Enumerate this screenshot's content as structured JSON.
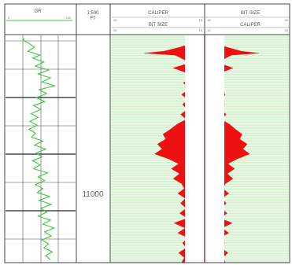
{
  "chart_data": {
    "type": "well-log",
    "colors": {
      "gr_curve": "#3cc83c",
      "track_fill": "#e6f7e2",
      "track_lines": "#bfe8b8",
      "caliper_fill": "#ee1111",
      "grid": "#333333",
      "header_text": "#555555"
    },
    "gr_track": {
      "label": "GR",
      "scale_left": "0",
      "scale_right": "150"
    },
    "depth_track": {
      "scale_line1": "1:500",
      "scale_line2": "FT",
      "depth_labels": [
        {
          "text": "11000",
          "depth": 11000
        }
      ]
    },
    "caliper_left_track": {
      "curve1_label": "CALIPER",
      "curve2_label": "BIT SIZE",
      "scale_left": "26",
      "scale_right": "16"
    },
    "caliper_right_track": {
      "curve1_label": "BIT SIZE",
      "curve2_label": "CALIPER",
      "scale_left": "16",
      "scale_right": "26"
    },
    "depth_range": [
      10840,
      11070
    ],
    "gr_range": [
      0,
      150
    ],
    "gr_values": [
      {
        "depth": 10843,
        "value": 40
      },
      {
        "depth": 10845,
        "value": 38
      },
      {
        "depth": 10848,
        "value": 50
      },
      {
        "depth": 10852,
        "value": 62
      },
      {
        "depth": 10856,
        "value": 48
      },
      {
        "depth": 10860,
        "value": 74
      },
      {
        "depth": 10863,
        "value": 58
      },
      {
        "depth": 10867,
        "value": 82
      },
      {
        "depth": 10871,
        "value": 64
      },
      {
        "depth": 10875,
        "value": 92
      },
      {
        "depth": 10879,
        "value": 70
      },
      {
        "depth": 10883,
        "value": 96
      },
      {
        "depth": 10887,
        "value": 78
      },
      {
        "depth": 10891,
        "value": 105
      },
      {
        "depth": 10895,
        "value": 72
      },
      {
        "depth": 10899,
        "value": 88
      },
      {
        "depth": 10903,
        "value": 66
      },
      {
        "depth": 10907,
        "value": 84
      },
      {
        "depth": 10911,
        "value": 60
      },
      {
        "depth": 10915,
        "value": 76
      },
      {
        "depth": 10919,
        "value": 55
      },
      {
        "depth": 10923,
        "value": 70
      },
      {
        "depth": 10927,
        "value": 52
      },
      {
        "depth": 10931,
        "value": 68
      },
      {
        "depth": 10935,
        "value": 50
      },
      {
        "depth": 10939,
        "value": 64
      },
      {
        "depth": 10943,
        "value": 56
      },
      {
        "depth": 10947,
        "value": 80
      },
      {
        "depth": 10951,
        "value": 62
      },
      {
        "depth": 10955,
        "value": 86
      },
      {
        "depth": 10959,
        "value": 66
      },
      {
        "depth": 10963,
        "value": 78
      },
      {
        "depth": 10967,
        "value": 58
      },
      {
        "depth": 10971,
        "value": 74
      },
      {
        "depth": 10975,
        "value": 60
      },
      {
        "depth": 10979,
        "value": 90
      },
      {
        "depth": 10983,
        "value": 70
      },
      {
        "depth": 10987,
        "value": 84
      },
      {
        "depth": 10991,
        "value": 64
      },
      {
        "depth": 10995,
        "value": 80
      },
      {
        "depth": 10999,
        "value": 68
      },
      {
        "depth": 11003,
        "value": 94
      },
      {
        "depth": 11007,
        "value": 72
      },
      {
        "depth": 11011,
        "value": 98
      },
      {
        "depth": 11015,
        "value": 76
      },
      {
        "depth": 11019,
        "value": 88
      },
      {
        "depth": 11023,
        "value": 70
      },
      {
        "depth": 11027,
        "value": 96
      },
      {
        "depth": 11031,
        "value": 80
      },
      {
        "depth": 11035,
        "value": 104
      },
      {
        "depth": 11039,
        "value": 84
      },
      {
        "depth": 11043,
        "value": 98
      },
      {
        "depth": 11047,
        "value": 78
      },
      {
        "depth": 11051,
        "value": 92
      },
      {
        "depth": 11055,
        "value": 82
      },
      {
        "depth": 11059,
        "value": 100
      },
      {
        "depth": 11063,
        "value": 86
      },
      {
        "depth": 11067,
        "value": 96
      }
    ],
    "bit_size": 16,
    "caliper_values": [
      {
        "depth": 10842,
        "value": 16.5
      },
      {
        "depth": 10848,
        "value": 17.2
      },
      {
        "depth": 10852,
        "value": 18.6
      },
      {
        "depth": 10856,
        "value": 20.3
      },
      {
        "depth": 10858,
        "value": 22.4
      },
      {
        "depth": 10860,
        "value": 19.1
      },
      {
        "depth": 10864,
        "value": 18.2
      },
      {
        "depth": 10868,
        "value": 17.6
      },
      {
        "depth": 10873,
        "value": 19.3
      },
      {
        "depth": 10877,
        "value": 18.1
      },
      {
        "depth": 10882,
        "value": 17.4
      },
      {
        "depth": 10888,
        "value": 18.2
      },
      {
        "depth": 10894,
        "value": 17.6
      },
      {
        "depth": 10900,
        "value": 18.4
      },
      {
        "depth": 10905,
        "value": 17.7
      },
      {
        "depth": 10910,
        "value": 18.3
      },
      {
        "depth": 10915,
        "value": 17.8
      },
      {
        "depth": 10920,
        "value": 18.5
      },
      {
        "depth": 10925,
        "value": 17.9
      },
      {
        "depth": 10930,
        "value": 18.9
      },
      {
        "depth": 10935,
        "value": 19.6
      },
      {
        "depth": 10940,
        "value": 20.4
      },
      {
        "depth": 10945,
        "value": 20.1
      },
      {
        "depth": 10950,
        "value": 21.0
      },
      {
        "depth": 10955,
        "value": 20.5
      },
      {
        "depth": 10960,
        "value": 21.3
      },
      {
        "depth": 10965,
        "value": 19.8
      },
      {
        "depth": 10970,
        "value": 18.7
      },
      {
        "depth": 10975,
        "value": 19.5
      },
      {
        "depth": 10980,
        "value": 18.6
      },
      {
        "depth": 10985,
        "value": 19.3
      },
      {
        "depth": 10990,
        "value": 18.4
      },
      {
        "depth": 10995,
        "value": 18.1
      },
      {
        "depth": 11000,
        "value": 18.8
      },
      {
        "depth": 11005,
        "value": 18.0
      },
      {
        "depth": 11010,
        "value": 18.5
      },
      {
        "depth": 11015,
        "value": 17.9
      },
      {
        "depth": 11020,
        "value": 18.6
      },
      {
        "depth": 11025,
        "value": 17.8
      },
      {
        "depth": 11030,
        "value": 19.2
      },
      {
        "depth": 11035,
        "value": 18.0
      },
      {
        "depth": 11040,
        "value": 18.8
      },
      {
        "depth": 11045,
        "value": 17.7
      },
      {
        "depth": 11050,
        "value": 18.3
      },
      {
        "depth": 11055,
        "value": 17.9
      },
      {
        "depth": 11060,
        "value": 18.7
      },
      {
        "depth": 11065,
        "value": 18.1
      },
      {
        "depth": 11070,
        "value": 18.4
      }
    ]
  }
}
